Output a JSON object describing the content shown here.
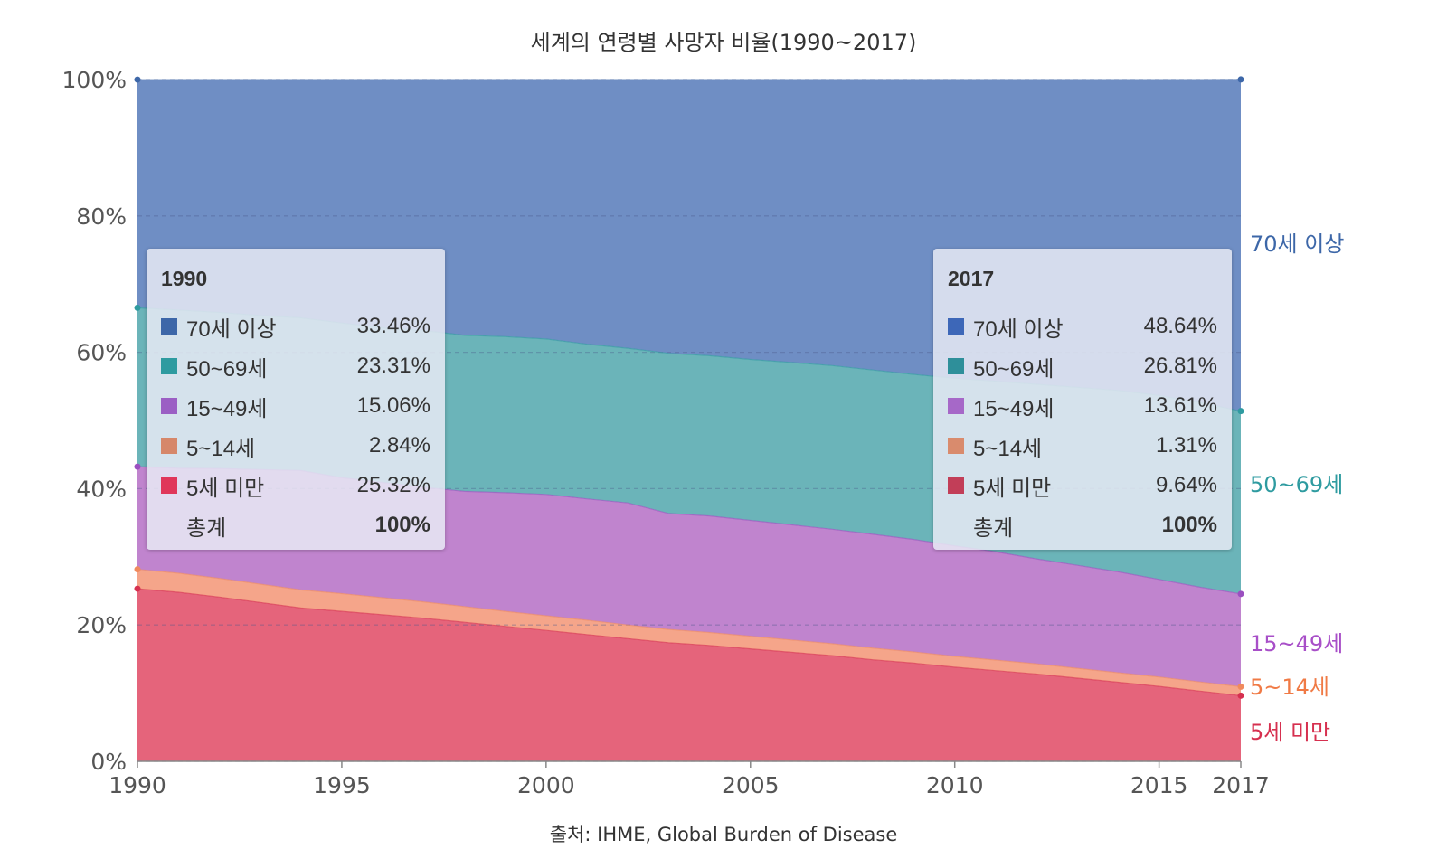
{
  "chart_data": {
    "type": "area",
    "stacked": true,
    "normalized": true,
    "title": "세계의 연령별 사망자 비율(1990~2017)",
    "source": "출처: IHME, Global Burden of Disease",
    "x": [
      1990,
      1991,
      1992,
      1993,
      1994,
      1995,
      1996,
      1997,
      1998,
      1999,
      2000,
      2001,
      2002,
      2003,
      2004,
      2005,
      2006,
      2007,
      2008,
      2009,
      2010,
      2011,
      2012,
      2013,
      2014,
      2015,
      2016,
      2017
    ],
    "xticks": [
      "1990",
      "1995",
      "2000",
      "2005",
      "2010",
      "2015",
      "2017"
    ],
    "xtick_values": [
      1990,
      1995,
      2000,
      2005,
      2010,
      2015,
      2017
    ],
    "yticks": [
      "0%",
      "20%",
      "40%",
      "60%",
      "80%",
      "100%"
    ],
    "ytick_values": [
      0,
      20,
      40,
      60,
      80,
      100
    ],
    "ylim": [
      0,
      100
    ],
    "grid": "horizontal dashed",
    "series": [
      {
        "name": "5세 미만",
        "color": "#e5647b",
        "edge_color": "#d6304f",
        "values": [
          25.32,
          24.8,
          24.1,
          23.3,
          22.5,
          22.0,
          21.5,
          21.0,
          20.4,
          19.8,
          19.2,
          18.6,
          18.0,
          17.4,
          17.0,
          16.5,
          16.0,
          15.5,
          14.9,
          14.4,
          13.8,
          13.3,
          12.8,
          12.2,
          11.6,
          11.0,
          10.3,
          9.64
        ]
      },
      {
        "name": "5~14세",
        "color": "#f5a58a",
        "edge_color": "#f08a5d",
        "values": [
          2.84,
          2.8,
          2.75,
          2.7,
          2.65,
          2.6,
          2.5,
          2.4,
          2.3,
          2.2,
          2.15,
          2.1,
          2.0,
          1.95,
          1.9,
          1.85,
          1.8,
          1.75,
          1.7,
          1.65,
          1.6,
          1.55,
          1.5,
          1.45,
          1.4,
          1.38,
          1.34,
          1.31
        ]
      },
      {
        "name": "15~49세",
        "color": "#c084ce",
        "edge_color": "#9b4fc0",
        "values": [
          15.06,
          15.4,
          16.1,
          16.8,
          17.5,
          17.0,
          16.9,
          16.8,
          16.9,
          17.4,
          17.8,
          17.8,
          17.9,
          17.0,
          17.1,
          17.0,
          16.9,
          16.8,
          16.7,
          16.5,
          16.2,
          15.9,
          15.4,
          15.1,
          14.8,
          14.3,
          13.9,
          13.61
        ]
      },
      {
        "name": "50~69세",
        "color": "#6bb4b9",
        "edge_color": "#2e9ba0",
        "values": [
          23.31,
          23.2,
          22.9,
          22.6,
          22.4,
          22.7,
          22.7,
          23.0,
          22.9,
          22.9,
          22.8,
          22.7,
          22.7,
          23.5,
          23.5,
          23.6,
          23.8,
          24.0,
          24.1,
          24.2,
          24.6,
          25.0,
          25.6,
          26.1,
          26.6,
          27.0,
          27.1,
          26.81
        ]
      },
      {
        "name": "70세 이상",
        "color": "#6f8ec4",
        "edge_color": "#3d67a8",
        "values": [
          33.46,
          33.8,
          34.15,
          34.6,
          34.95,
          35.7,
          36.4,
          36.8,
          37.5,
          37.7,
          38.05,
          38.8,
          39.4,
          40.15,
          40.5,
          41.05,
          41.5,
          41.95,
          42.6,
          43.25,
          43.8,
          44.25,
          44.7,
          45.15,
          45.6,
          46.32,
          47.36,
          48.64
        ]
      }
    ],
    "legend_1990": {
      "year": "1990",
      "rows": [
        {
          "name": "70세 이상",
          "value": "33.46%",
          "color": "#3d67a8"
        },
        {
          "name": "50~69세",
          "value": "23.31%",
          "color": "#2e9ba0"
        },
        {
          "name": "15~49세",
          "value": "15.06%",
          "color": "#9b5fc4"
        },
        {
          "name": "5~14세",
          "value": "2.84%",
          "color": "#d6876a"
        },
        {
          "name": "5세 미만",
          "value": "25.32%",
          "color": "#e0365a"
        }
      ],
      "total_label": "총계",
      "total_value": "100%"
    },
    "legend_2017": {
      "year": "2017",
      "rows": [
        {
          "name": "70세 이상",
          "value": "48.64%",
          "color": "#3d67b8"
        },
        {
          "name": "50~69세",
          "value": "26.81%",
          "color": "#2e8f9a"
        },
        {
          "name": "15~49세",
          "value": "13.61%",
          "color": "#a668c8"
        },
        {
          "name": "5~14세",
          "value": "1.31%",
          "color": "#d98b6d"
        },
        {
          "name": "5세 미만",
          "value": "9.64%",
          "color": "#c23e58"
        }
      ],
      "total_label": "총계",
      "total_value": "100%"
    },
    "end_labels": [
      {
        "name": "70세 이상",
        "color": "#3d67a8"
      },
      {
        "name": "50~69세",
        "color": "#2e9ba0"
      },
      {
        "name": "15~49세",
        "color": "#a84fc8"
      },
      {
        "name": "5~14세",
        "color": "#f07a45"
      },
      {
        "name": "5세 미만",
        "color": "#d6304f"
      }
    ]
  }
}
